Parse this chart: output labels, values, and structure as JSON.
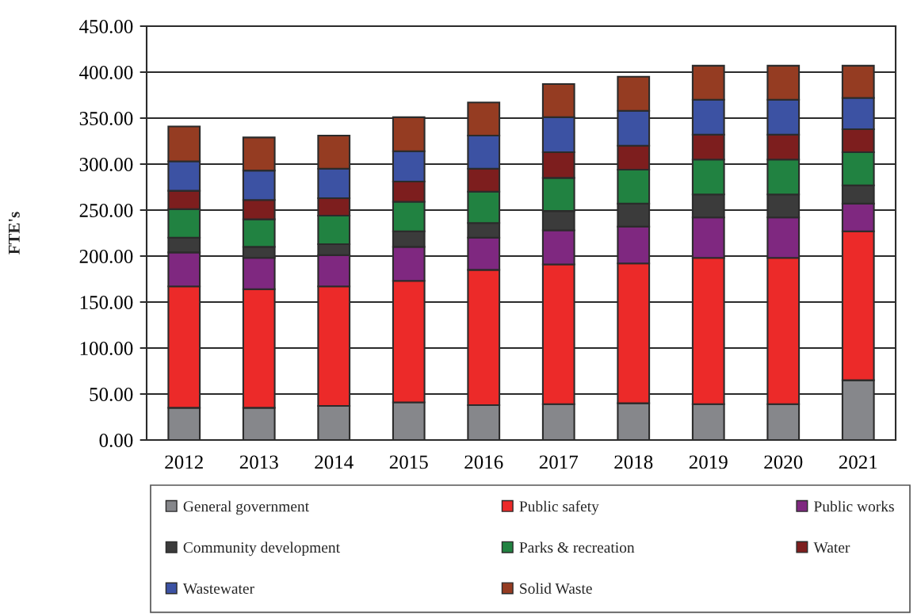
{
  "chart_data": {
    "type": "bar",
    "stacked": true,
    "ylabel": "FTE's",
    "categories": [
      "2012",
      "2013",
      "2014",
      "2015",
      "2016",
      "2017",
      "2018",
      "2019",
      "2020",
      "2021"
    ],
    "series": [
      {
        "name": "General government",
        "color": "#86878b",
        "values": [
          35,
          35,
          37,
          41,
          38,
          39,
          40,
          39,
          39,
          65
        ]
      },
      {
        "name": "Public safety",
        "color": "#ec2a29",
        "values": [
          132,
          129,
          130,
          132,
          147,
          152,
          152,
          159,
          159,
          162
        ]
      },
      {
        "name": "Public works",
        "color": "#7f2880",
        "values": [
          37,
          34,
          34,
          37,
          35,
          37,
          40,
          44,
          44,
          30
        ]
      },
      {
        "name": "Community development",
        "color": "#3b3b3b",
        "values": [
          16,
          12,
          12,
          17,
          16,
          21,
          25,
          25,
          25,
          20
        ]
      },
      {
        "name": "Parks & recreation",
        "color": "#218241",
        "values": [
          31,
          30,
          31,
          32,
          34,
          36,
          37,
          38,
          38,
          36
        ]
      },
      {
        "name": "Water",
        "color": "#7d1e1e",
        "values": [
          20,
          21,
          19,
          22,
          25,
          28,
          26,
          27,
          27,
          25
        ]
      },
      {
        "name": "Wastewater",
        "color": "#3c52a3",
        "values": [
          32,
          32,
          32,
          33,
          36,
          38,
          38,
          38,
          38,
          34
        ]
      },
      {
        "name": "Solid Waste",
        "color": "#953c22",
        "values": [
          38,
          36,
          36,
          37,
          36,
          36,
          37,
          37,
          37,
          35
        ]
      }
    ],
    "ylim": [
      0,
      450
    ],
    "yticks": [
      {
        "value": 0,
        "label": "0.00"
      },
      {
        "value": 50,
        "label": "50.00"
      },
      {
        "value": 100,
        "label": "100.00"
      },
      {
        "value": 150,
        "label": "150.00"
      },
      {
        "value": 200,
        "label": "200.00"
      },
      {
        "value": 250,
        "label": "250.00"
      },
      {
        "value": 300,
        "label": "300.00"
      },
      {
        "value": 350,
        "label": "350.00"
      },
      {
        "value": 400,
        "label": "400.00"
      },
      {
        "value": 450,
        "label": "450.00"
      }
    ],
    "grid": "y",
    "legend": "bottom"
  }
}
